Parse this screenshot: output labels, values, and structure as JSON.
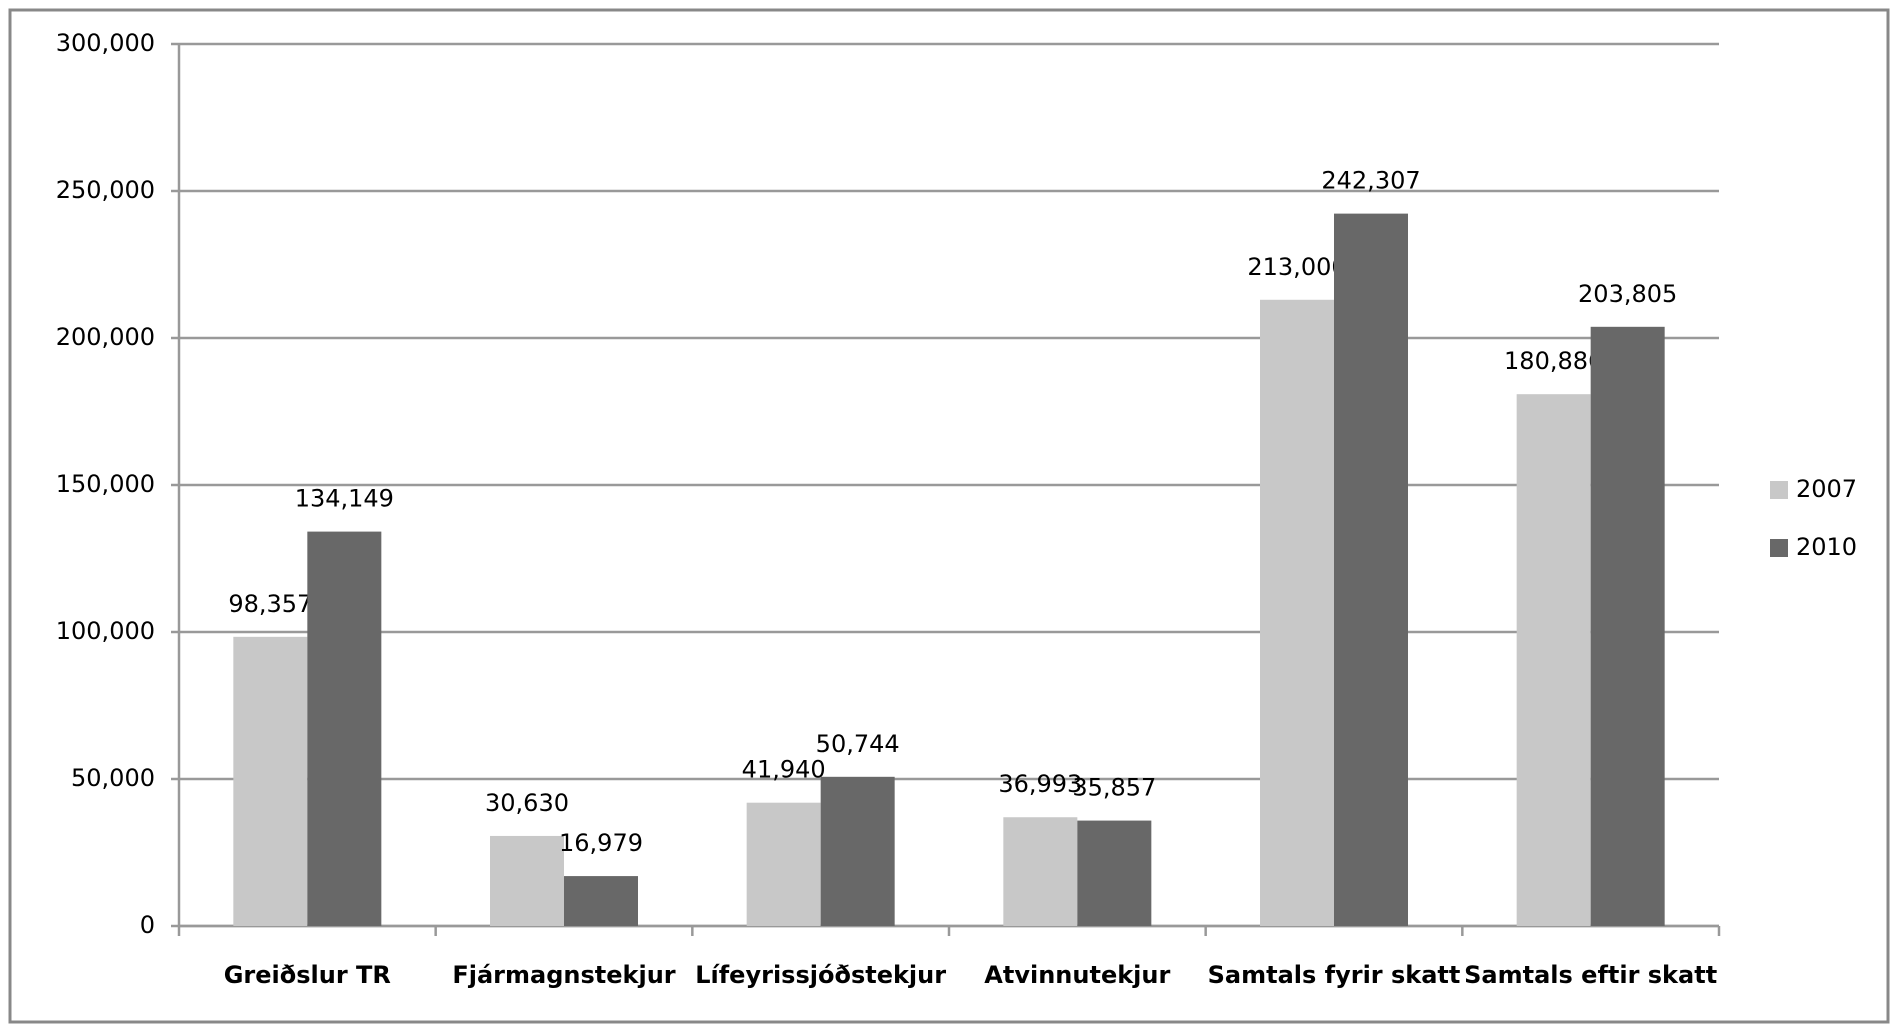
{
  "chart_data": {
    "type": "bar",
    "categories": [
      "Greiðslur TR",
      "Fjármagnstekjur",
      "Lífeyrissjóðstekjur",
      "Atvinnutekjur",
      "Samtals fyrir skatt",
      "Samtals eftir skatt"
    ],
    "series": [
      {
        "name": "2007",
        "color": "#c8c8c8",
        "values": [
          98357,
          30630,
          41940,
          36993,
          213000,
          180886
        ],
        "value_labels": [
          "98,357",
          "30,630",
          "41,940",
          "36,993",
          "213,000",
          "180,886"
        ]
      },
      {
        "name": "2010",
        "color": "#686868",
        "values": [
          134149,
          16979,
          50744,
          35857,
          242307,
          203805
        ],
        "value_labels": [
          "134,149",
          "16,979",
          "50,744",
          "35,857",
          "242,307",
          "203,805"
        ]
      }
    ],
    "ylim": [
      0,
      300000
    ],
    "yticks": [
      0,
      {
        "value": 50000,
        "label": "50,000"
      },
      {
        "value": 100000,
        "label": "100,000"
      },
      {
        "value": 150000,
        "label": "150,000"
      },
      {
        "value": 200000,
        "label": "200,000"
      },
      {
        "value": 250000,
        "label": "250,000"
      },
      {
        "value": 300000,
        "label": "300,000"
      }
    ],
    "grid": true,
    "legend": "right"
  }
}
